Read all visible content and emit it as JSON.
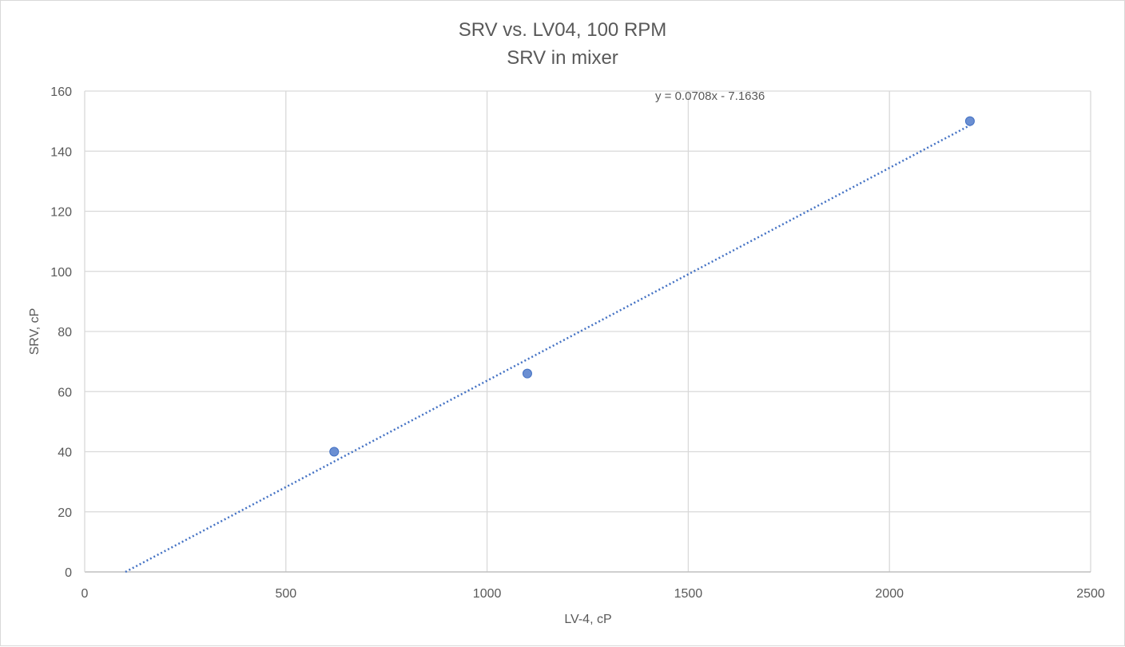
{
  "chart_data": {
    "type": "scatter",
    "title": "SRV vs. LV04, 100 RPM",
    "subtitle": "SRV in mixer",
    "xlabel": "LV-4, cP",
    "ylabel": "SRV, cP",
    "xlim": [
      0,
      2500
    ],
    "ylim": [
      0,
      160
    ],
    "x_ticks": [
      "0",
      "500",
      "1000",
      "1500",
      "2000",
      "2500"
    ],
    "y_ticks": [
      "0",
      "20",
      "40",
      "60",
      "80",
      "100",
      "120",
      "140",
      "160"
    ],
    "grid": true,
    "legend": "none",
    "series": [
      {
        "points": [
          {
            "x": 620,
            "y": 40
          },
          {
            "x": 1100,
            "y": 66
          },
          {
            "x": 2200,
            "y": 150
          }
        ],
        "color": "#4472c4",
        "marker_color": "#6b8fd2"
      }
    ],
    "trendline": {
      "type": "linear",
      "slope": 0.0708,
      "intercept": -7.1636,
      "x_range": [
        101.2,
        2200
      ],
      "style": "dotted",
      "color": "#4472c4",
      "equation_label": "y = 0.0708x - 7.1636"
    },
    "colors": {
      "gridline": "#d9d9d9",
      "axis_line": "#bfbfbf",
      "text": "#595959"
    }
  }
}
